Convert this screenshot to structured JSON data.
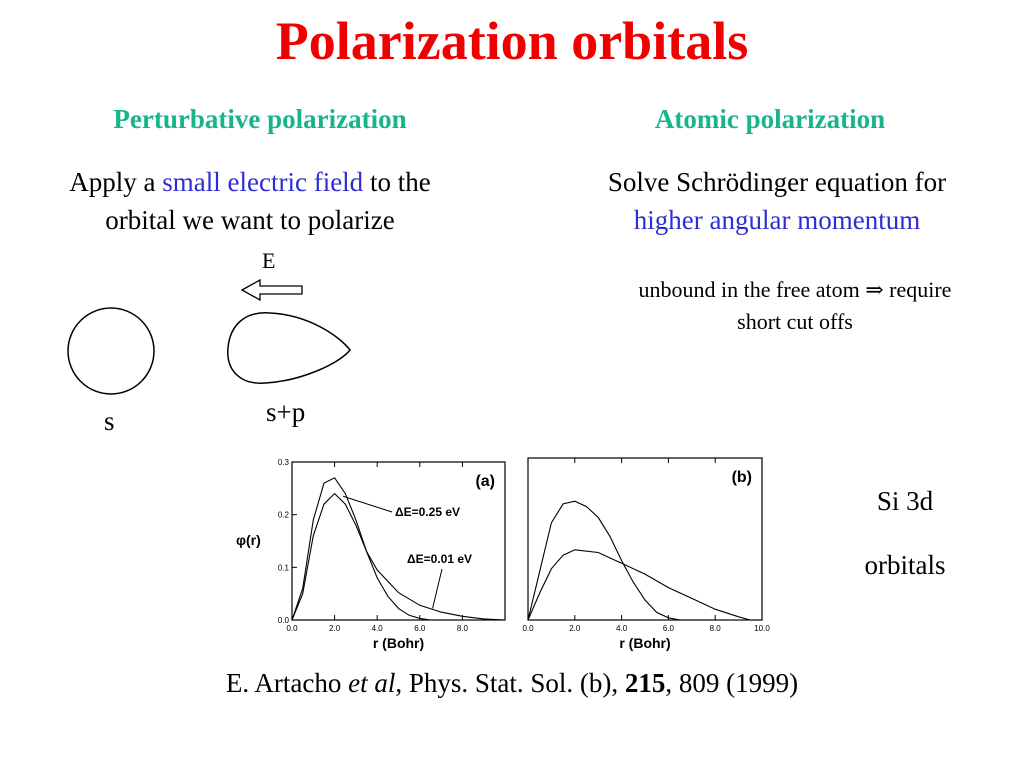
{
  "title": "Polarization orbitals",
  "left": {
    "heading": "Perturbative polarization",
    "line1_pre": "Apply  a ",
    "line1_highlight": "small electric field",
    "line1_post": " to the",
    "line2": "orbital we want to polarize",
    "field_label": "E",
    "s_label": "s",
    "sp_label": "s+p"
  },
  "right": {
    "heading": "Atomic polarization",
    "line1": "Solve Schrödinger equation for",
    "line2": "higher angular momentum",
    "note_line1": "unbound in the free atom ⇒ require",
    "note_line2": "short cut offs"
  },
  "side_label": {
    "line1": "Si 3d",
    "line2": "orbitals"
  },
  "citation": {
    "pre": "E. Artacho ",
    "etal": "et al",
    "mid": ", Phys. Stat. Sol. (b), ",
    "volume": "215",
    "post": ", 809 (1999)"
  },
  "chart_data": [
    {
      "type": "line",
      "panel_label": "(a)",
      "ylabel": "φ(r)",
      "xlabel": "r (Bohr)",
      "xlim": [
        0,
        10
      ],
      "ylim": [
        0,
        0.3
      ],
      "xticks": [
        "0.0",
        "2.0",
        "4.0",
        "6.0",
        "8.0"
      ],
      "yticks": [
        "0.0",
        "0.1",
        "0.2",
        "0.3"
      ],
      "annotations": [
        "ΔE=0.25 eV",
        "ΔE=0.01 eV"
      ],
      "series": [
        {
          "x": [
            0,
            0.5,
            1,
            1.5,
            2,
            2.5,
            3,
            3.5,
            4,
            4.5,
            5,
            5.5,
            6,
            6.5
          ],
          "values": [
            0,
            0.06,
            0.19,
            0.26,
            0.27,
            0.24,
            0.19,
            0.13,
            0.08,
            0.045,
            0.022,
            0.009,
            0.003,
            0
          ]
        },
        {
          "x": [
            0,
            0.5,
            1,
            1.5,
            2,
            2.5,
            3,
            3.5,
            4,
            5,
            6,
            7,
            8,
            9,
            10
          ],
          "values": [
            0,
            0.05,
            0.16,
            0.22,
            0.24,
            0.22,
            0.18,
            0.13,
            0.095,
            0.052,
            0.028,
            0.015,
            0.007,
            0.002,
            0
          ]
        }
      ]
    },
    {
      "type": "line",
      "panel_label": "(b)",
      "xlabel": "r (Bohr)",
      "xlim": [
        0,
        10
      ],
      "ylim": [
        0,
        0.3
      ],
      "xticks": [
        "0.0",
        "2.0",
        "4.0",
        "6.0",
        "8.0",
        "10.0"
      ],
      "series": [
        {
          "x": [
            0,
            0.5,
            1,
            1.5,
            2,
            2.5,
            3,
            3.5,
            4,
            4.5,
            5,
            5.5,
            6,
            6.5
          ],
          "values": [
            0,
            0.09,
            0.18,
            0.215,
            0.22,
            0.21,
            0.19,
            0.155,
            0.11,
            0.07,
            0.037,
            0.014,
            0.004,
            0
          ]
        },
        {
          "x": [
            0,
            0.5,
            1,
            1.5,
            2,
            3,
            4,
            5,
            6,
            7,
            8,
            9,
            9.5
          ],
          "values": [
            0,
            0.05,
            0.095,
            0.12,
            0.13,
            0.125,
            0.105,
            0.085,
            0.06,
            0.04,
            0.02,
            0.006,
            0
          ]
        }
      ]
    }
  ]
}
